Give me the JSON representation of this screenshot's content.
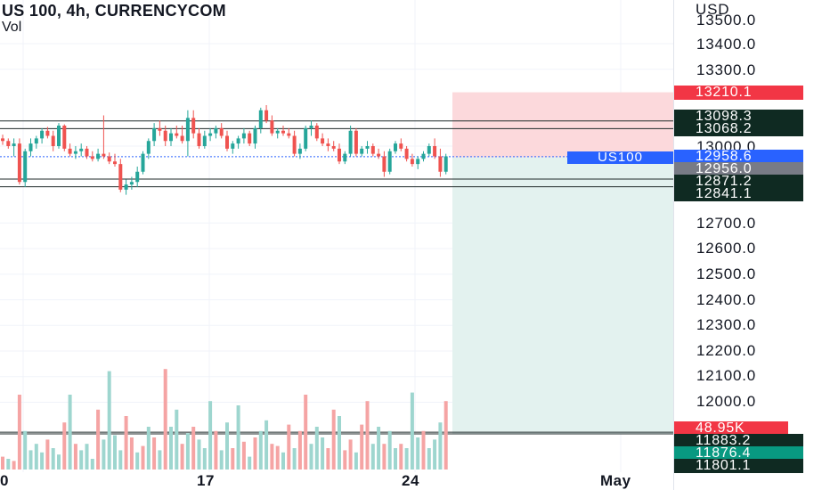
{
  "header": {
    "title": "US 100, 4h, CURRENCYCOM",
    "subtitle": "Vol"
  },
  "price_axis": {
    "currency": "USD",
    "ticks": [
      "13500.0",
      "13400.0",
      "13300.0",
      "13000.0",
      "12700.0",
      "12600.0",
      "12500.0",
      "12400.0",
      "12300.0",
      "12200.0",
      "12100.0",
      "12000.0"
    ],
    "tags": [
      {
        "label": "13210.1",
        "price": 13210.1,
        "color": "#f23645"
      },
      {
        "label": "13098.3",
        "price": 13098.3,
        "color": "#0f2a22"
      },
      {
        "label": "13068.2",
        "price": 13068.2,
        "color": "#0f2a22"
      },
      {
        "label": "12958.6",
        "price": 12958.6,
        "color": "#2962ff"
      },
      {
        "label": "12956.0",
        "price": 12956.0,
        "color": "#787b86"
      },
      {
        "label": "12871.2",
        "price": 12871.2,
        "color": "#0f2a22"
      },
      {
        "label": "12841.1",
        "price": 12841.1,
        "color": "#0f2a22"
      }
    ],
    "symbol_tag": "US100",
    "volume_tags": [
      {
        "label": "48.95K",
        "color": "#f23645"
      },
      {
        "label": "11883.2",
        "color": "#0f2a22"
      },
      {
        "label": "11876.4",
        "color": "#089981"
      },
      {
        "label": "11801.1",
        "color": "#0f2a22"
      }
    ]
  },
  "time_axis": {
    "labels": [
      "0",
      "17",
      "24",
      "May"
    ]
  },
  "colors": {
    "up": "#26a69a",
    "down": "#ef5350",
    "vol_up": "#9ed6cf",
    "vol_down": "#f5a4a4",
    "profit_zone": "#e3f2ef",
    "loss_zone": "#fcd9dc",
    "grid": "#f0f3fa"
  },
  "chart_data": {
    "type": "candlestick",
    "title": "US 100, 4h, CURRENCYCOM",
    "ylabel": "USD",
    "ylim": [
      11801.1,
      13520
    ],
    "horizontal_levels": [
      13098.3,
      13068.2,
      12871.2,
      12841.1
    ],
    "position": {
      "entry": 12956.0,
      "stop": 13210.1,
      "target": 11876.4
    },
    "candles": [
      [
        13030,
        13045,
        13005,
        13020
      ],
      [
        13020,
        13030,
        12990,
        13000
      ],
      [
        13000,
        13030,
        12960,
        13010
      ],
      [
        13010,
        13030,
        12850,
        12860
      ],
      [
        12860,
        12990,
        12840,
        12980
      ],
      [
        12980,
        13030,
        12960,
        13010
      ],
      [
        13010,
        13040,
        12990,
        13030
      ],
      [
        13030,
        13070,
        13010,
        13060
      ],
      [
        13060,
        13075,
        13030,
        13040
      ],
      [
        13040,
        13060,
        12980,
        13000
      ],
      [
        13000,
        13090,
        12990,
        13080
      ],
      [
        13080,
        13085,
        12980,
        12990
      ],
      [
        12990,
        13010,
        12960,
        12970
      ],
      [
        12970,
        13000,
        12950,
        12980
      ],
      [
        12980,
        13010,
        12960,
        12990
      ],
      [
        12990,
        13000,
        12950,
        12960
      ],
      [
        12960,
        12980,
        12940,
        12950
      ],
      [
        12950,
        12990,
        12940,
        12970
      ],
      [
        12970,
        13120,
        12950,
        12960
      ],
      [
        12960,
        12975,
        12930,
        12940
      ],
      [
        12940,
        12970,
        12920,
        12930
      ],
      [
        12930,
        12950,
        12820,
        12830
      ],
      [
        12830,
        12870,
        12810,
        12850
      ],
      [
        12850,
        12880,
        12830,
        12860
      ],
      [
        12860,
        12920,
        12840,
        12900
      ],
      [
        12900,
        12980,
        12890,
        12970
      ],
      [
        12970,
        13030,
        12950,
        13020
      ],
      [
        13020,
        13090,
        13000,
        13070
      ],
      [
        13070,
        13100,
        13040,
        13060
      ],
      [
        13060,
        13080,
        13000,
        13020
      ],
      [
        13020,
        13070,
        13000,
        13050
      ],
      [
        13050,
        13080,
        13030,
        13040
      ],
      [
        13040,
        13080,
        13010,
        13020
      ],
      [
        13020,
        13140,
        12960,
        13110
      ],
      [
        13110,
        13140,
        13030,
        13050
      ],
      [
        13050,
        13070,
        12990,
        13000
      ],
      [
        13000,
        13060,
        12990,
        13040
      ],
      [
        13040,
        13070,
        13020,
        13050
      ],
      [
        13050,
        13080,
        13030,
        13070
      ],
      [
        13070,
        13090,
        13030,
        13040
      ],
      [
        13040,
        13060,
        12980,
        12990
      ],
      [
        12990,
        13020,
        12970,
        13010
      ],
      [
        13010,
        13040,
        12990,
        13030
      ],
      [
        13030,
        13070,
        13010,
        13050
      ],
      [
        13050,
        13060,
        13000,
        13010
      ],
      [
        13010,
        13080,
        12990,
        13070
      ],
      [
        13070,
        13150,
        13050,
        13140
      ],
      [
        13140,
        13160,
        13090,
        13100
      ],
      [
        13100,
        13120,
        13040,
        13050
      ],
      [
        13050,
        13070,
        13030,
        13060
      ],
      [
        13060,
        13080,
        13040,
        13050
      ],
      [
        13050,
        13070,
        13030,
        13040
      ],
      [
        13040,
        13060,
        12960,
        12970
      ],
      [
        12970,
        13010,
        12950,
        12990
      ],
      [
        12990,
        13080,
        12980,
        13070
      ],
      [
        13070,
        13100,
        13040,
        13080
      ],
      [
        13080,
        13090,
        13020,
        13030
      ],
      [
        13030,
        13050,
        13000,
        13010
      ],
      [
        13010,
        13030,
        12980,
        13000
      ],
      [
        13000,
        13020,
        12980,
        12990
      ],
      [
        12990,
        13010,
        12930,
        12940
      ],
      [
        12940,
        12980,
        12930,
        12970
      ],
      [
        12970,
        13080,
        12960,
        13060
      ],
      [
        13060,
        13070,
        12960,
        12970
      ],
      [
        12970,
        13000,
        12960,
        12990
      ],
      [
        12990,
        13020,
        12970,
        13000
      ],
      [
        13000,
        13010,
        12960,
        12970
      ],
      [
        12970,
        12990,
        12950,
        12960
      ],
      [
        12960,
        12980,
        12880,
        12900
      ],
      [
        12900,
        12990,
        12890,
        12980
      ],
      [
        12980,
        13020,
        12970,
        13010
      ],
      [
        13010,
        13030,
        12980,
        12990
      ],
      [
        12990,
        13000,
        12940,
        12950
      ],
      [
        12950,
        12970,
        12920,
        12930
      ],
      [
        12930,
        12960,
        12910,
        12950
      ],
      [
        12950,
        12980,
        12940,
        12970
      ],
      [
        12970,
        13010,
        12960,
        13000
      ],
      [
        13000,
        13030,
        12950,
        12960
      ],
      [
        12960,
        12990,
        12880,
        12900
      ],
      [
        12900,
        12970,
        12890,
        12960
      ]
    ],
    "volume": [
      [
        6,
        0
      ],
      [
        5,
        1
      ],
      [
        4,
        0
      ],
      [
        35,
        0
      ],
      [
        18,
        1
      ],
      [
        9,
        1
      ],
      [
        12,
        1
      ],
      [
        8,
        1
      ],
      [
        14,
        0
      ],
      [
        10,
        1
      ],
      [
        7,
        1
      ],
      [
        22,
        0
      ],
      [
        35,
        1
      ],
      [
        12,
        0
      ],
      [
        9,
        1
      ],
      [
        12,
        1
      ],
      [
        5,
        1
      ],
      [
        28,
        0
      ],
      [
        14,
        1
      ],
      [
        46,
        1
      ],
      [
        16,
        1
      ],
      [
        9,
        1
      ],
      [
        25,
        0
      ],
      [
        15,
        0
      ],
      [
        8,
        1
      ],
      [
        11,
        0
      ],
      [
        20,
        1
      ],
      [
        15,
        0
      ],
      [
        9,
        1
      ],
      [
        47,
        0
      ],
      [
        20,
        1
      ],
      [
        28,
        1
      ],
      [
        12,
        0
      ],
      [
        17,
        1
      ],
      [
        20,
        0
      ],
      [
        14,
        1
      ],
      [
        10,
        1
      ],
      [
        32,
        1
      ],
      [
        18,
        0
      ],
      [
        9,
        1
      ],
      [
        22,
        1
      ],
      [
        10,
        0
      ],
      [
        30,
        1
      ],
      [
        13,
        0
      ],
      [
        6,
        1
      ],
      [
        15,
        0
      ],
      [
        18,
        1
      ],
      [
        23,
        1
      ],
      [
        12,
        0
      ],
      [
        11,
        0
      ],
      [
        8,
        1
      ],
      [
        21,
        0
      ],
      [
        10,
        1
      ],
      [
        18,
        0
      ],
      [
        35,
        0
      ],
      [
        12,
        1
      ],
      [
        20,
        1
      ],
      [
        15,
        1
      ],
      [
        10,
        0
      ],
      [
        28,
        0
      ],
      [
        25,
        1
      ],
      [
        9,
        0
      ],
      [
        14,
        0
      ],
      [
        8,
        1
      ],
      [
        21,
        0
      ],
      [
        32,
        0
      ],
      [
        12,
        1
      ],
      [
        20,
        1
      ],
      [
        12,
        0
      ],
      [
        18,
        1
      ],
      [
        10,
        1
      ],
      [
        12,
        0
      ],
      [
        10,
        1
      ],
      [
        36,
        1
      ],
      [
        15,
        1
      ],
      [
        18,
        0
      ],
      [
        10,
        1
      ],
      [
        14,
        1
      ],
      [
        22,
        1
      ],
      [
        32,
        0
      ]
    ]
  }
}
